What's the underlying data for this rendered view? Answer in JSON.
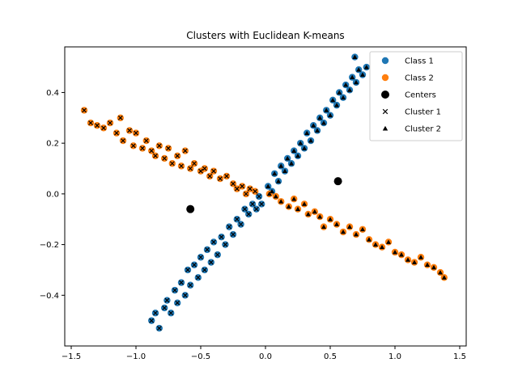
{
  "chart_data": {
    "type": "scatter",
    "title": "Clusters with Euclidean K-means",
    "xlabel": "",
    "ylabel": "",
    "xlim": [
      -1.55,
      1.55
    ],
    "ylim": [
      -0.6,
      0.58
    ],
    "xticks": [
      -1.5,
      -1.0,
      -0.5,
      0.0,
      0.5,
      1.0,
      1.5
    ],
    "xtick_labels": [
      "−1.5",
      "−1.0",
      "−0.5",
      "0.0",
      "0.5",
      "1.0",
      "1.5"
    ],
    "yticks": [
      -0.4,
      -0.2,
      0.0,
      0.2,
      0.4
    ],
    "ytick_labels": [
      "−0.4",
      "−0.2",
      "0.0",
      "0.2",
      "0.4"
    ],
    "grid": false,
    "legend_position": "top-right",
    "legend": [
      {
        "label": "Class 1",
        "marker": "circle",
        "color": "#1f77b4"
      },
      {
        "label": "Class 2",
        "marker": "circle",
        "color": "#ff7f0e"
      },
      {
        "label": "Centers",
        "marker": "circle",
        "color": "#000000"
      },
      {
        "label": "Cluster 1",
        "marker": "x",
        "color": "#000000"
      },
      {
        "label": "Cluster 2",
        "marker": "triangle",
        "color": "#000000"
      }
    ],
    "colors": {
      "class1": "#1f77b4",
      "class2": "#ff7f0e",
      "marker": "#000000"
    },
    "centers": [
      {
        "x": -0.58,
        "y": -0.06
      },
      {
        "x": 0.56,
        "y": 0.05
      }
    ],
    "series": [
      {
        "name": "Class 1",
        "points": [
          [
            -0.88,
            -0.5
          ],
          [
            -0.85,
            -0.47
          ],
          [
            -0.82,
            -0.53
          ],
          [
            -0.78,
            -0.45
          ],
          [
            -0.76,
            -0.42
          ],
          [
            -0.73,
            -0.47
          ],
          [
            -0.7,
            -0.38
          ],
          [
            -0.68,
            -0.43
          ],
          [
            -0.65,
            -0.35
          ],
          [
            -0.62,
            -0.4
          ],
          [
            -0.6,
            -0.3
          ],
          [
            -0.58,
            -0.36
          ],
          [
            -0.55,
            -0.28
          ],
          [
            -0.52,
            -0.33
          ],
          [
            -0.5,
            -0.25
          ],
          [
            -0.47,
            -0.3
          ],
          [
            -0.45,
            -0.22
          ],
          [
            -0.42,
            -0.27
          ],
          [
            -0.4,
            -0.19
          ],
          [
            -0.37,
            -0.24
          ],
          [
            -0.34,
            -0.17
          ],
          [
            -0.31,
            -0.2
          ],
          [
            -0.28,
            -0.13
          ],
          [
            -0.25,
            -0.16
          ],
          [
            -0.22,
            -0.1
          ],
          [
            -0.19,
            -0.12
          ],
          [
            -0.16,
            -0.06
          ],
          [
            -0.13,
            -0.08
          ],
          [
            -0.1,
            -0.04
          ],
          [
            -0.07,
            -0.06
          ],
          [
            -0.05,
            -0.01
          ],
          [
            -0.03,
            -0.04
          ],
          [
            0.02,
            0.03
          ],
          [
            0.05,
            0.01
          ],
          [
            0.07,
            0.08
          ],
          [
            0.1,
            0.05
          ],
          [
            0.12,
            0.11
          ],
          [
            0.15,
            0.09
          ],
          [
            0.17,
            0.14
          ],
          [
            0.2,
            0.12
          ],
          [
            0.22,
            0.17
          ],
          [
            0.25,
            0.15
          ],
          [
            0.27,
            0.2
          ],
          [
            0.3,
            0.18
          ],
          [
            0.32,
            0.24
          ],
          [
            0.35,
            0.21
          ],
          [
            0.37,
            0.27
          ],
          [
            0.4,
            0.25
          ],
          [
            0.42,
            0.3
          ],
          [
            0.45,
            0.28
          ],
          [
            0.47,
            0.33
          ],
          [
            0.5,
            0.31
          ],
          [
            0.52,
            0.37
          ],
          [
            0.55,
            0.35
          ],
          [
            0.57,
            0.4
          ],
          [
            0.6,
            0.38
          ],
          [
            0.62,
            0.43
          ],
          [
            0.65,
            0.41
          ],
          [
            0.67,
            0.46
          ],
          [
            0.7,
            0.44
          ],
          [
            0.72,
            0.49
          ],
          [
            0.75,
            0.47
          ],
          [
            0.78,
            0.5
          ],
          [
            0.69,
            0.54
          ]
        ]
      },
      {
        "name": "Class 2",
        "points": [
          [
            -1.4,
            0.33
          ],
          [
            -1.35,
            0.28
          ],
          [
            -1.3,
            0.27
          ],
          [
            -1.25,
            0.26
          ],
          [
            -1.2,
            0.28
          ],
          [
            -1.15,
            0.24
          ],
          [
            -1.12,
            0.3
          ],
          [
            -1.1,
            0.21
          ],
          [
            -1.05,
            0.25
          ],
          [
            -1.02,
            0.19
          ],
          [
            -1.0,
            0.24
          ],
          [
            -0.95,
            0.18
          ],
          [
            -0.92,
            0.21
          ],
          [
            -0.88,
            0.17
          ],
          [
            -0.85,
            0.15
          ],
          [
            -0.82,
            0.19
          ],
          [
            -0.78,
            0.14
          ],
          [
            -0.75,
            0.18
          ],
          [
            -0.72,
            0.12
          ],
          [
            -0.68,
            0.15
          ],
          [
            -0.65,
            0.11
          ],
          [
            -0.62,
            0.17
          ],
          [
            -0.58,
            0.1
          ],
          [
            -0.55,
            0.12
          ],
          [
            -0.5,
            0.09
          ],
          [
            -0.47,
            0.1
          ],
          [
            -0.43,
            0.07
          ],
          [
            -0.4,
            0.09
          ],
          [
            -0.35,
            0.06
          ],
          [
            -0.3,
            0.07
          ],
          [
            -0.25,
            0.04
          ],
          [
            -0.22,
            0.02
          ],
          [
            -0.18,
            0.03
          ],
          [
            -0.15,
            0.0
          ],
          [
            -0.12,
            0.02
          ],
          [
            -0.08,
            0.01
          ],
          [
            0.03,
            0.0
          ],
          [
            0.08,
            -0.01
          ],
          [
            0.12,
            -0.03
          ],
          [
            0.18,
            -0.05
          ],
          [
            0.22,
            -0.02
          ],
          [
            0.25,
            -0.06
          ],
          [
            0.3,
            -0.04
          ],
          [
            0.33,
            -0.08
          ],
          [
            0.38,
            -0.07
          ],
          [
            0.42,
            -0.09
          ],
          [
            0.45,
            -0.13
          ],
          [
            0.5,
            -0.1
          ],
          [
            0.55,
            -0.12
          ],
          [
            0.6,
            -0.15
          ],
          [
            0.65,
            -0.13
          ],
          [
            0.7,
            -0.16
          ],
          [
            0.75,
            -0.14
          ],
          [
            0.8,
            -0.18
          ],
          [
            0.85,
            -0.2
          ],
          [
            0.9,
            -0.21
          ],
          [
            0.95,
            -0.19
          ],
          [
            1.0,
            -0.23
          ],
          [
            1.05,
            -0.24
          ],
          [
            1.1,
            -0.26
          ],
          [
            1.15,
            -0.27
          ],
          [
            1.2,
            -0.25
          ],
          [
            1.25,
            -0.28
          ],
          [
            1.3,
            -0.29
          ],
          [
            1.35,
            -0.31
          ],
          [
            1.38,
            -0.33
          ]
        ]
      }
    ]
  }
}
